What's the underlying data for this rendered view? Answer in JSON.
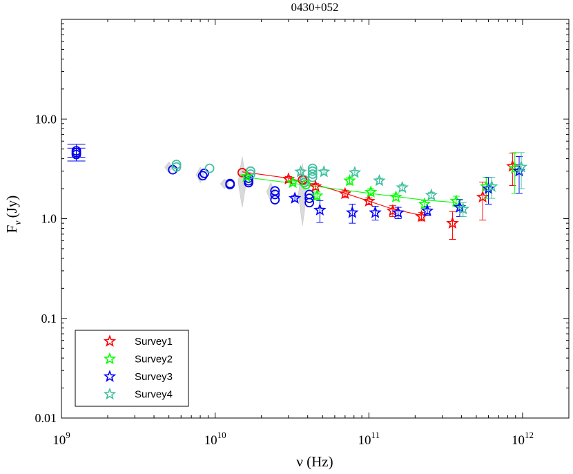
{
  "chart_data": {
    "type": "scatter",
    "title": "0430+052",
    "xlabel": "ν (Hz)",
    "ylabel": "F_ν (Jy)",
    "ylabel_main": "F",
    "ylabel_sub": "ν",
    "ylabel_unit": "(Jy)",
    "xscale": "log",
    "yscale": "log",
    "xlim": [
      1000000000.0,
      2000000000000.0
    ],
    "ylim": [
      0.01,
      100
    ],
    "x_ticks": [
      {
        "value": 1000000000.0,
        "base": "10",
        "exp": "9"
      },
      {
        "value": 10000000000.0,
        "base": "10",
        "exp": "10"
      },
      {
        "value": 100000000000.0,
        "base": "10",
        "exp": "11"
      },
      {
        "value": 1000000000000.0,
        "base": "10",
        "exp": "12"
      }
    ],
    "y_ticks": [
      {
        "value": 0.01,
        "label": "0.01"
      },
      {
        "value": 0.1,
        "label": "0.1"
      },
      {
        "value": 1,
        "label": "1.0"
      },
      {
        "value": 10,
        "label": "10.0"
      }
    ],
    "legend": {
      "placement": "bottom-left",
      "entries": [
        "Survey1",
        "Survey2",
        "Survey3",
        "Survey4"
      ]
    },
    "series": [
      {
        "name": "Survey1",
        "color": "#ff0000",
        "points": [
          {
            "x": 30000000000.0,
            "y": 2.5,
            "err": 0.15
          },
          {
            "x": 45000000000.0,
            "y": 2.1,
            "err": 0.15
          },
          {
            "x": 70000000000.0,
            "y": 1.78,
            "err": 0.15
          },
          {
            "x": 100000000000.0,
            "y": 1.5,
            "err": 0.12
          },
          {
            "x": 143000000000.0,
            "y": 1.2,
            "err": 0.15
          },
          {
            "x": 220000000000.0,
            "y": 1.05,
            "err": 0.1
          },
          {
            "x": 350000000000.0,
            "y": 0.9,
            "err": 0.28
          },
          {
            "x": 550000000000.0,
            "y": 1.65,
            "err": 0.68
          },
          {
            "x": 860000000000.0,
            "y": 3.35,
            "err": 1.2
          }
        ],
        "fit": [
          [
            15000000000.0,
            2.95
          ],
          [
            30000000000.0,
            2.55
          ],
          [
            45000000000.0,
            2.2
          ],
          [
            70000000000.0,
            1.8
          ],
          [
            100000000000.0,
            1.5
          ],
          [
            143000000000.0,
            1.25
          ],
          [
            220000000000.0,
            1.08
          ]
        ]
      },
      {
        "name": "Survey2",
        "color": "#00ff00",
        "points": [
          {
            "x": 16000000000.0,
            "y": 2.65,
            "err": 0.1
          },
          {
            "x": 32000000000.0,
            "y": 2.3,
            "err": 0.12
          },
          {
            "x": 46000000000.0,
            "y": 1.7,
            "err": 0.15
          },
          {
            "x": 75000000000.0,
            "y": 2.4,
            "err": 0.2
          },
          {
            "x": 103000000000.0,
            "y": 1.85,
            "err": 0.15
          },
          {
            "x": 150000000000.0,
            "y": 1.65,
            "err": 0.12
          },
          {
            "x": 230000000000.0,
            "y": 1.4,
            "err": 0.12
          },
          {
            "x": 370000000000.0,
            "y": 1.5,
            "err": 0.18
          },
          {
            "x": 580000000000.0,
            "y": 2.1,
            "err": 0.5
          },
          {
            "x": 890000000000.0,
            "y": 3.2,
            "err": 1.4
          }
        ],
        "fit": [
          [
            16000000000.0,
            2.6
          ],
          [
            37000000000.0,
            2.2
          ],
          [
            100000000000.0,
            1.8
          ],
          [
            220000000000.0,
            1.55
          ],
          [
            370000000000.0,
            1.45
          ]
        ]
      },
      {
        "name": "Survey3",
        "color": "#0000ff",
        "points": [
          {
            "x": 33000000000.0,
            "y": 1.6,
            "err": 0.1
          },
          {
            "x": 48000000000.0,
            "y": 1.22,
            "err": 0.3
          },
          {
            "x": 78000000000.0,
            "y": 1.15,
            "err": 0.25
          },
          {
            "x": 110000000000.0,
            "y": 1.15,
            "err": 0.18
          },
          {
            "x": 155000000000.0,
            "y": 1.15,
            "err": 0.15
          },
          {
            "x": 240000000000.0,
            "y": 1.2,
            "err": 0.12
          },
          {
            "x": 390000000000.0,
            "y": 1.3,
            "err": 0.25
          },
          {
            "x": 600000000000.0,
            "y": 2.0,
            "err": 0.6
          },
          {
            "x": 950000000000.0,
            "y": 3.0,
            "err": 1.2
          }
        ]
      },
      {
        "name": "Survey4",
        "color": "#40c0a0",
        "points": [
          {
            "x": 36000000000.0,
            "y": 2.95,
            "err": 0.15
          },
          {
            "x": 51000000000.0,
            "y": 2.95,
            "err": 0.15
          },
          {
            "x": 81000000000.0,
            "y": 2.9,
            "err": 0.15
          },
          {
            "x": 117000000000.0,
            "y": 2.4,
            "err": 0.15
          },
          {
            "x": 165000000000.0,
            "y": 2.05,
            "err": 0.15
          },
          {
            "x": 255000000000.0,
            "y": 1.72,
            "err": 0.12
          },
          {
            "x": 410000000000.0,
            "y": 1.25,
            "err": 0.2
          },
          {
            "x": 630000000000.0,
            "y": 2.1,
            "err": 0.5
          },
          {
            "x": 980000000000.0,
            "y": 3.3,
            "err": 1.3
          }
        ]
      }
    ],
    "circle_series": [
      {
        "name": "blue-circles",
        "color": "#0000ee",
        "points": [
          {
            "x": 1250000000.0,
            "y": 4.8
          },
          {
            "x": 1250000000.0,
            "y": 4.4
          },
          {
            "x": 1250000000.0,
            "y": 4.6
          },
          {
            "x": 5300000000.0,
            "y": 3.1
          },
          {
            "x": 8300000000.0,
            "y": 2.7
          },
          {
            "x": 8500000000.0,
            "y": 2.85
          },
          {
            "x": 12500000000.0,
            "y": 2.2
          },
          {
            "x": 12500000000.0,
            "y": 2.25
          },
          {
            "x": 16500000000.0,
            "y": 2.3
          },
          {
            "x": 16500000000.0,
            "y": 2.55
          },
          {
            "x": 16500000000.0,
            "y": 2.4
          },
          {
            "x": 24500000000.0,
            "y": 1.55
          },
          {
            "x": 24500000000.0,
            "y": 1.75
          },
          {
            "x": 24500000000.0,
            "y": 1.9
          },
          {
            "x": 41000000000.0,
            "y": 1.45
          },
          {
            "x": 41000000000.0,
            "y": 1.6
          },
          {
            "x": 41000000000.0,
            "y": 1.75
          }
        ]
      },
      {
        "name": "teal-circles",
        "color": "#40c0a0",
        "points": [
          {
            "x": 5600000000.0,
            "y": 3.5
          },
          {
            "x": 5600000000.0,
            "y": 3.3
          },
          {
            "x": 9200000000.0,
            "y": 3.2
          },
          {
            "x": 17000000000.0,
            "y": 3.0
          },
          {
            "x": 17000000000.0,
            "y": 2.8
          },
          {
            "x": 38000000000.0,
            "y": 2.3
          },
          {
            "x": 38000000000.0,
            "y": 2.45
          },
          {
            "x": 43000000000.0,
            "y": 2.6
          },
          {
            "x": 43000000000.0,
            "y": 2.8
          },
          {
            "x": 43000000000.0,
            "y": 3.0
          },
          {
            "x": 43000000000.0,
            "y": 3.2
          }
        ]
      },
      {
        "name": "red-circles",
        "color": "#ff0000",
        "points": [
          {
            "x": 15000000000.0,
            "y": 2.9
          },
          {
            "x": 37000000000.0,
            "y": 2.45
          }
        ]
      },
      {
        "name": "green-circles",
        "color": "#00ff00",
        "points": [
          {
            "x": 39000000000.0,
            "y": 2.2
          }
        ]
      }
    ],
    "gray_spreads": [
      {
        "x": 5000000000.0,
        "y_lo": 2.9,
        "y_hi": 3.7
      },
      {
        "x": 8000000000.0,
        "y_lo": 2.3,
        "y_hi": 3.3
      },
      {
        "x": 11500000000.0,
        "y_lo": 2.0,
        "y_hi": 2.5
      },
      {
        "x": 15000000000.0,
        "y_lo": 1.3,
        "y_hi": 4.2
      },
      {
        "x": 23000000000.0,
        "y_lo": 1.5,
        "y_hi": 2.3
      },
      {
        "x": 37000000000.0,
        "y_lo": 0.85,
        "y_hi": 3.6
      }
    ]
  }
}
